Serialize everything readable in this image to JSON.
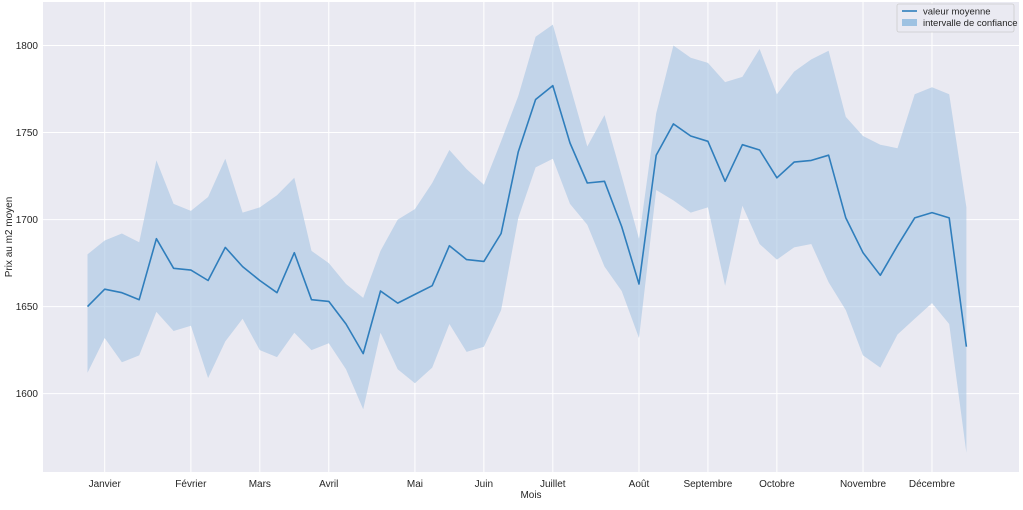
{
  "chart_data": {
    "type": "line",
    "title": "",
    "xlabel": "Mois",
    "ylabel": "Prix au m2 moyen",
    "ylim": [
      1555,
      1825
    ],
    "yticks": [
      1600,
      1650,
      1700,
      1750,
      1800
    ],
    "grid": true,
    "legend": {
      "position": "top-right",
      "entries": [
        {
          "label": "valeur moyenne",
          "kind": "line",
          "color": "#2f7ebc"
        },
        {
          "label": "intervalle de confiance",
          "kind": "band",
          "color": "#9ec2e2"
        }
      ]
    },
    "colors": {
      "background": "#eaeaf2",
      "grid": "#ffffff",
      "line": "#2f7ebc",
      "band": "#a7c4e2"
    },
    "x": [
      1,
      2,
      3,
      4,
      5,
      6,
      7,
      8,
      9,
      10,
      11,
      12,
      13,
      14,
      15,
      16,
      17,
      18,
      19,
      20,
      21,
      22,
      23,
      24,
      25,
      26,
      27,
      28,
      29,
      30,
      31,
      32,
      33,
      34,
      35,
      36,
      37,
      38,
      39,
      40,
      41,
      42,
      43,
      44,
      45,
      46,
      47,
      48,
      49,
      50,
      51,
      52
    ],
    "xlim": [
      -1.58,
      55.05
    ],
    "x_ticks": [
      {
        "label": "Janvier",
        "x": 2
      },
      {
        "label": "Février",
        "x": 7
      },
      {
        "label": "Mars",
        "x": 11
      },
      {
        "label": "Avril",
        "x": 15
      },
      {
        "label": "Mai",
        "x": 20
      },
      {
        "label": "Juin",
        "x": 24
      },
      {
        "label": "Juillet",
        "x": 28
      },
      {
        "label": "Août",
        "x": 33
      },
      {
        "label": "Septembre",
        "x": 37
      },
      {
        "label": "Octobre",
        "x": 41
      },
      {
        "label": "Novembre",
        "x": 46
      },
      {
        "label": "Décembre",
        "x": 50
      }
    ],
    "series": [
      {
        "name": "valeur moyenne",
        "values": [
          1650,
          1660,
          1658,
          1654,
          1689,
          1672,
          1671,
          1665,
          1684,
          1673,
          1665,
          1658,
          1681,
          1654,
          1653,
          1640,
          1623,
          1659,
          1652,
          1657,
          1662,
          1685,
          1677,
          1676,
          1692,
          1739,
          1769,
          1777,
          1744,
          1721,
          1722,
          1696,
          1663,
          1737,
          1755,
          1748,
          1745,
          1722,
          1743,
          1740,
          1724,
          1733,
          1734,
          1737,
          1701,
          1681,
          1668,
          1685,
          1701,
          1704,
          1701,
          1627
        ]
      }
    ],
    "band": {
      "name": "intervalle de confiance",
      "upper": [
        1680,
        1688,
        1692,
        1687,
        1734,
        1709,
        1705,
        1713,
        1735,
        1704,
        1707,
        1714,
        1724,
        1682,
        1675,
        1663,
        1655,
        1682,
        1700,
        1706,
        1721,
        1740,
        1729,
        1720,
        1745,
        1771,
        1805,
        1812,
        1777,
        1742,
        1760,
        1725,
        1689,
        1761,
        1800,
        1793,
        1790,
        1779,
        1782,
        1798,
        1772,
        1785,
        1792,
        1797,
        1759,
        1748,
        1743,
        1741,
        1772,
        1776,
        1772,
        1707
      ],
      "lower": [
        1612,
        1632,
        1618,
        1622,
        1647,
        1636,
        1639,
        1609,
        1630,
        1643,
        1625,
        1621,
        1635,
        1625,
        1629,
        1614,
        1591,
        1635,
        1614,
        1606,
        1615,
        1640,
        1624,
        1627,
        1648,
        1701,
        1730,
        1735,
        1709,
        1697,
        1673,
        1659,
        1632,
        1717,
        1711,
        1704,
        1707,
        1662,
        1708,
        1686,
        1677,
        1684,
        1686,
        1664,
        1648,
        1622,
        1615,
        1634,
        1643,
        1652,
        1640,
        1566
      ]
    }
  }
}
